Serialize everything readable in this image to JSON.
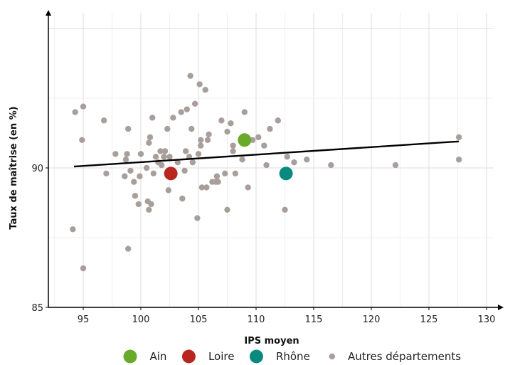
{
  "chart_data": {
    "type": "scatter",
    "xlabel": "IPS moyen",
    "ylabel": "Taux de maîtrise (en %)",
    "xlim": [
      92.5,
      131
    ],
    "ylim": [
      84.8,
      95.5
    ],
    "x_ticks": [
      95,
      100,
      105,
      110,
      115,
      120,
      125,
      130
    ],
    "y_ticks": [
      85,
      90
    ],
    "grid": true,
    "legend_position": "bottom",
    "trend_line": {
      "x": [
        94.2,
        127.6
      ],
      "y": [
        90.05,
        90.95
      ]
    },
    "series": [
      {
        "name": "Ain",
        "color": "#6aaa2a",
        "marker": "large",
        "points": [
          {
            "x": 109.0,
            "y": 91.0
          }
        ]
      },
      {
        "name": "Loire",
        "color": "#b8261f",
        "marker": "large",
        "points": [
          {
            "x": 102.6,
            "y": 89.8
          }
        ]
      },
      {
        "name": "Rhône",
        "color": "#0a8a7e",
        "marker": "large",
        "points": [
          {
            "x": 112.6,
            "y": 89.8
          }
        ]
      },
      {
        "name": "Autres départements",
        "color": "#a89f9a",
        "marker": "small",
        "points": [
          {
            "x": 94.1,
            "y": 87.8
          },
          {
            "x": 94.3,
            "y": 92.0
          },
          {
            "x": 95.0,
            "y": 92.2
          },
          {
            "x": 94.9,
            "y": 91.0
          },
          {
            "x": 95.0,
            "y": 86.4
          },
          {
            "x": 96.8,
            "y": 91.7
          },
          {
            "x": 97.0,
            "y": 89.8
          },
          {
            "x": 97.8,
            "y": 90.5
          },
          {
            "x": 98.6,
            "y": 89.7
          },
          {
            "x": 98.7,
            "y": 90.3
          },
          {
            "x": 98.8,
            "y": 90.5
          },
          {
            "x": 98.9,
            "y": 91.4
          },
          {
            "x": 98.9,
            "y": 87.1
          },
          {
            "x": 99.1,
            "y": 89.9
          },
          {
            "x": 99.4,
            "y": 89.5
          },
          {
            "x": 99.5,
            "y": 89.0
          },
          {
            "x": 99.8,
            "y": 88.7
          },
          {
            "x": 99.9,
            "y": 89.7
          },
          {
            "x": 100.0,
            "y": 90.5
          },
          {
            "x": 100.5,
            "y": 90.0
          },
          {
            "x": 100.6,
            "y": 88.8
          },
          {
            "x": 100.7,
            "y": 88.5
          },
          {
            "x": 100.7,
            "y": 90.9
          },
          {
            "x": 100.8,
            "y": 91.1
          },
          {
            "x": 100.9,
            "y": 88.7
          },
          {
            "x": 101.0,
            "y": 91.8
          },
          {
            "x": 101.1,
            "y": 89.8
          },
          {
            "x": 101.3,
            "y": 90.4
          },
          {
            "x": 101.5,
            "y": 90.2
          },
          {
            "x": 101.7,
            "y": 90.6
          },
          {
            "x": 101.8,
            "y": 90.1
          },
          {
            "x": 102.0,
            "y": 90.4
          },
          {
            "x": 102.1,
            "y": 90.6
          },
          {
            "x": 102.3,
            "y": 91.4
          },
          {
            "x": 102.4,
            "y": 89.2
          },
          {
            "x": 102.5,
            "y": 90.4
          },
          {
            "x": 102.8,
            "y": 91.8
          },
          {
            "x": 103.2,
            "y": 90.2
          },
          {
            "x": 103.5,
            "y": 92.0
          },
          {
            "x": 103.6,
            "y": 88.9
          },
          {
            "x": 103.8,
            "y": 89.9
          },
          {
            "x": 103.9,
            "y": 90.6
          },
          {
            "x": 104.0,
            "y": 92.1
          },
          {
            "x": 104.2,
            "y": 90.4
          },
          {
            "x": 104.3,
            "y": 93.3
          },
          {
            "x": 104.4,
            "y": 91.4
          },
          {
            "x": 104.5,
            "y": 90.2
          },
          {
            "x": 104.7,
            "y": 92.3
          },
          {
            "x": 104.9,
            "y": 88.2
          },
          {
            "x": 105.0,
            "y": 90.5
          },
          {
            "x": 105.1,
            "y": 93.0
          },
          {
            "x": 105.2,
            "y": 90.8
          },
          {
            "x": 105.2,
            "y": 91.0
          },
          {
            "x": 105.3,
            "y": 89.3
          },
          {
            "x": 105.6,
            "y": 92.8
          },
          {
            "x": 105.7,
            "y": 89.3
          },
          {
            "x": 105.8,
            "y": 91.0
          },
          {
            "x": 105.9,
            "y": 91.2
          },
          {
            "x": 106.2,
            "y": 89.5
          },
          {
            "x": 106.5,
            "y": 89.5
          },
          {
            "x": 106.6,
            "y": 89.7
          },
          {
            "x": 106.7,
            "y": 89.5
          },
          {
            "x": 107.0,
            "y": 91.7
          },
          {
            "x": 107.3,
            "y": 89.8
          },
          {
            "x": 107.5,
            "y": 88.5
          },
          {
            "x": 107.5,
            "y": 91.3
          },
          {
            "x": 107.8,
            "y": 91.6
          },
          {
            "x": 108.0,
            "y": 90.6
          },
          {
            "x": 108.0,
            "y": 90.8
          },
          {
            "x": 108.2,
            "y": 89.8
          },
          {
            "x": 108.8,
            "y": 90.3
          },
          {
            "x": 109.0,
            "y": 92.0
          },
          {
            "x": 109.3,
            "y": 89.3
          },
          {
            "x": 109.7,
            "y": 91.0
          },
          {
            "x": 110.2,
            "y": 91.1
          },
          {
            "x": 110.7,
            "y": 90.8
          },
          {
            "x": 110.9,
            "y": 90.1
          },
          {
            "x": 111.2,
            "y": 91.4
          },
          {
            "x": 111.9,
            "y": 91.7
          },
          {
            "x": 112.5,
            "y": 88.5
          },
          {
            "x": 112.7,
            "y": 90.4
          },
          {
            "x": 113.3,
            "y": 90.2
          },
          {
            "x": 114.4,
            "y": 90.3
          },
          {
            "x": 116.5,
            "y": 90.1
          },
          {
            "x": 122.1,
            "y": 90.1
          },
          {
            "x": 127.6,
            "y": 91.1
          },
          {
            "x": 127.6,
            "y": 90.3
          }
        ]
      }
    ]
  }
}
